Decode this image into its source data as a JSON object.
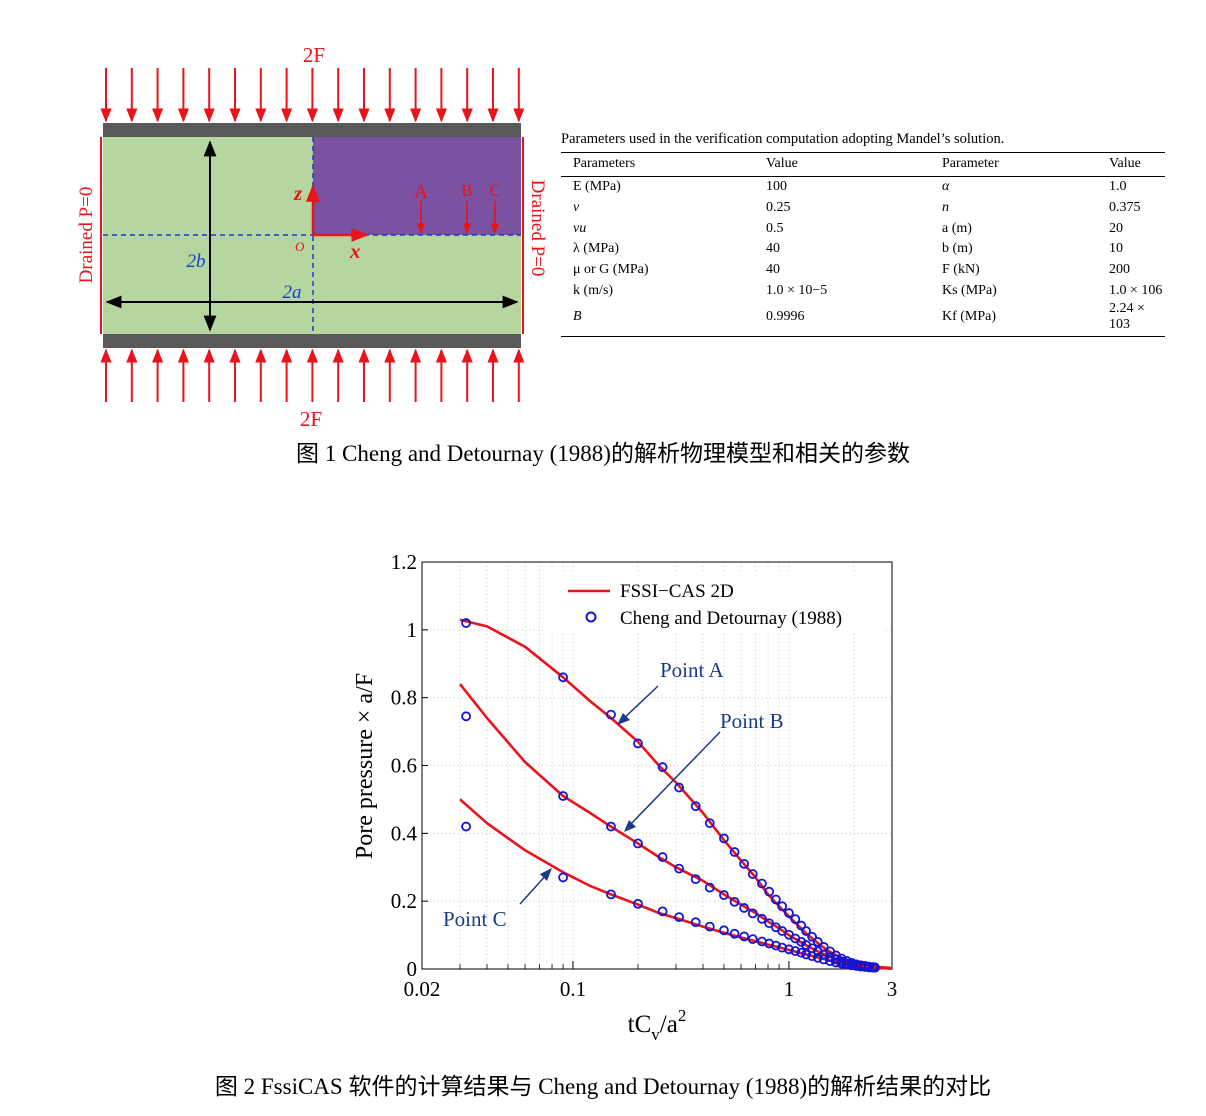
{
  "figure1": {
    "load_top": "2F",
    "load_bottom": "2F",
    "left_boundary": "Drained P=0",
    "right_boundary": "Drained P=0",
    "axis_z": "z",
    "axis_x": "x",
    "origin": "O",
    "dim_height": "2b",
    "dim_width": "2a",
    "point_a": "A",
    "point_b": "B",
    "point_c": "C",
    "colors": {
      "soil": "#b5d69f",
      "quadrant": "#7b51a1",
      "plate": "#595959",
      "load": "#e8131b",
      "dashed": "#1a3cd6"
    },
    "caption": "图 1 Cheng and Detournay (1988)的解析物理模型和相关的参数"
  },
  "table": {
    "caption": "Parameters used in the verification computation adopting Mandel’s solution.",
    "headers": [
      "Parameters",
      "Value",
      "Parameter",
      "Value"
    ],
    "rows": [
      [
        "E (MPa)",
        "100",
        "α",
        "1.0"
      ],
      [
        "ν",
        "0.25",
        "n",
        "0.375"
      ],
      [
        "νu",
        "0.5",
        "a (m)",
        "20"
      ],
      [
        "λ (MPa)",
        "40",
        "b (m)",
        "10"
      ],
      [
        "μ or G (MPa)",
        "40",
        "F (kN)",
        "200"
      ],
      [
        "k (m/s)",
        "1.0 × 10−5",
        "Ks (MPa)",
        "1.0 × 106"
      ],
      [
        "B",
        "0.9996",
        "Kf (MPa)",
        "2.24 × 103"
      ]
    ]
  },
  "chart_data": {
    "type": "line",
    "xlabel": "tCv/a2",
    "ylabel": "Pore pressure × a/F",
    "xscale": "log",
    "xlim": [
      0.02,
      3
    ],
    "ylim": [
      0,
      1.2
    ],
    "xticks": [
      {
        "value": 0.02,
        "label": "0.02"
      },
      {
        "value": 0.1,
        "label": "0.1"
      },
      {
        "value": 1,
        "label": "1"
      },
      {
        "value": 3,
        "label": "3"
      }
    ],
    "yticks": [
      {
        "value": 0,
        "label": "0"
      },
      {
        "value": 0.2,
        "label": "0.2"
      },
      {
        "value": 0.4,
        "label": "0.4"
      },
      {
        "value": 0.6,
        "label": "0.6"
      },
      {
        "value": 0.8,
        "label": "0.8"
      },
      {
        "value": 1,
        "label": "1"
      },
      {
        "value": 1.2,
        "label": "1.2"
      }
    ],
    "grid": true,
    "legend_position": "top-right",
    "legend": [
      {
        "label": "FSSI−CAS 2D",
        "style": "line",
        "color": "#e8131b"
      },
      {
        "label": "Cheng and Detournay (1988)",
        "style": "circle",
        "color": "#1414d2"
      }
    ],
    "series": [
      {
        "name": "Point A",
        "line_x": [
          0.03,
          0.04,
          0.06,
          0.09,
          0.12,
          0.15,
          0.2,
          0.25,
          0.3,
          0.4,
          0.5,
          0.6,
          0.7,
          0.8,
          0.9,
          1.0,
          1.2,
          1.4,
          1.6,
          1.8,
          2.0,
          2.2,
          2.4,
          2.6,
          2.8,
          3.0
        ],
        "line_y": [
          1.03,
          1.01,
          0.95,
          0.86,
          0.79,
          0.74,
          0.67,
          0.6,
          0.55,
          0.46,
          0.38,
          0.32,
          0.27,
          0.22,
          0.185,
          0.155,
          0.105,
          0.07,
          0.045,
          0.03,
          0.02,
          0.013,
          0.009,
          0.006,
          0.004,
          0.003
        ],
        "points_x": [
          0.032,
          0.09,
          0.15,
          0.2,
          0.26,
          0.31,
          0.37,
          0.43,
          0.5,
          0.56,
          0.62,
          0.68,
          0.75,
          0.81,
          0.87,
          0.93,
          1.0,
          1.07,
          1.14,
          1.2,
          1.28,
          1.36,
          1.45,
          1.55,
          1.65,
          1.75,
          1.85,
          1.95,
          2.05,
          2.15,
          2.25,
          2.35,
          2.45,
          2.5
        ],
        "points_y": [
          1.02,
          0.86,
          0.75,
          0.665,
          0.595,
          0.535,
          0.48,
          0.43,
          0.385,
          0.345,
          0.31,
          0.28,
          0.252,
          0.228,
          0.205,
          0.185,
          0.165,
          0.147,
          0.128,
          0.112,
          0.095,
          0.08,
          0.065,
          0.052,
          0.04,
          0.031,
          0.024,
          0.018,
          0.014,
          0.011,
          0.009,
          0.007,
          0.006,
          0.005
        ]
      },
      {
        "name": "Point B",
        "line_x": [
          0.03,
          0.04,
          0.06,
          0.09,
          0.12,
          0.15,
          0.2,
          0.25,
          0.3,
          0.4,
          0.5,
          0.6,
          0.7,
          0.8,
          0.9,
          1.0,
          1.2,
          1.4,
          1.6,
          1.8,
          2.0,
          2.2,
          2.4,
          2.6,
          2.8,
          3.0
        ],
        "line_y": [
          0.84,
          0.74,
          0.61,
          0.51,
          0.46,
          0.42,
          0.37,
          0.33,
          0.3,
          0.26,
          0.22,
          0.19,
          0.165,
          0.14,
          0.12,
          0.1,
          0.07,
          0.048,
          0.032,
          0.021,
          0.014,
          0.009,
          0.006,
          0.004,
          0.003,
          0.002
        ],
        "points_x": [
          0.032,
          0.09,
          0.15,
          0.2,
          0.26,
          0.31,
          0.37,
          0.43,
          0.5,
          0.56,
          0.62,
          0.68,
          0.75,
          0.81,
          0.87,
          0.93,
          1.0,
          1.07,
          1.14,
          1.2,
          1.28,
          1.36,
          1.45,
          1.55,
          1.65,
          1.75,
          1.85,
          1.95,
          2.05,
          2.15,
          2.25,
          2.35,
          2.45,
          2.5
        ],
        "points_y": [
          0.745,
          0.51,
          0.42,
          0.37,
          0.33,
          0.296,
          0.265,
          0.24,
          0.218,
          0.198,
          0.18,
          0.164,
          0.148,
          0.135,
          0.123,
          0.112,
          0.101,
          0.09,
          0.08,
          0.071,
          0.061,
          0.052,
          0.043,
          0.035,
          0.028,
          0.022,
          0.017,
          0.013,
          0.01,
          0.008,
          0.007,
          0.005,
          0.004,
          0.004
        ]
      },
      {
        "name": "Point C",
        "line_x": [
          0.03,
          0.04,
          0.06,
          0.09,
          0.12,
          0.15,
          0.2,
          0.25,
          0.3,
          0.4,
          0.5,
          0.6,
          0.7,
          0.8,
          0.9,
          1.0,
          1.2,
          1.4,
          1.6,
          1.8,
          2.0,
          2.2,
          2.4,
          2.6,
          2.8,
          3.0
        ],
        "line_y": [
          0.5,
          0.43,
          0.35,
          0.285,
          0.245,
          0.22,
          0.19,
          0.165,
          0.15,
          0.125,
          0.107,
          0.093,
          0.082,
          0.072,
          0.064,
          0.056,
          0.043,
          0.032,
          0.023,
          0.016,
          0.011,
          0.007,
          0.005,
          0.003,
          0.002,
          0.001
        ],
        "points_x": [
          0.032,
          0.09,
          0.15,
          0.2,
          0.26,
          0.31,
          0.37,
          0.43,
          0.5,
          0.56,
          0.62,
          0.68,
          0.75,
          0.81,
          0.87,
          0.93,
          1.0,
          1.07,
          1.14,
          1.2,
          1.28,
          1.36,
          1.45,
          1.55,
          1.65,
          1.75,
          1.85,
          1.95,
          2.05,
          2.15,
          2.25,
          2.35,
          2.45,
          2.5
        ],
        "points_y": [
          0.42,
          0.27,
          0.22,
          0.192,
          0.17,
          0.153,
          0.138,
          0.125,
          0.114,
          0.104,
          0.096,
          0.088,
          0.081,
          0.075,
          0.069,
          0.063,
          0.058,
          0.053,
          0.048,
          0.043,
          0.038,
          0.033,
          0.028,
          0.023,
          0.019,
          0.016,
          0.013,
          0.011,
          0.009,
          0.007,
          0.006,
          0.005,
          0.004,
          0.004
        ]
      }
    ],
    "annotations": [
      "Point A",
      "Point B",
      "Point C"
    ],
    "caption": "图 2 FssiCAS 软件的计算结果与 Cheng and Detournay (1988)的解析结果的对比"
  }
}
